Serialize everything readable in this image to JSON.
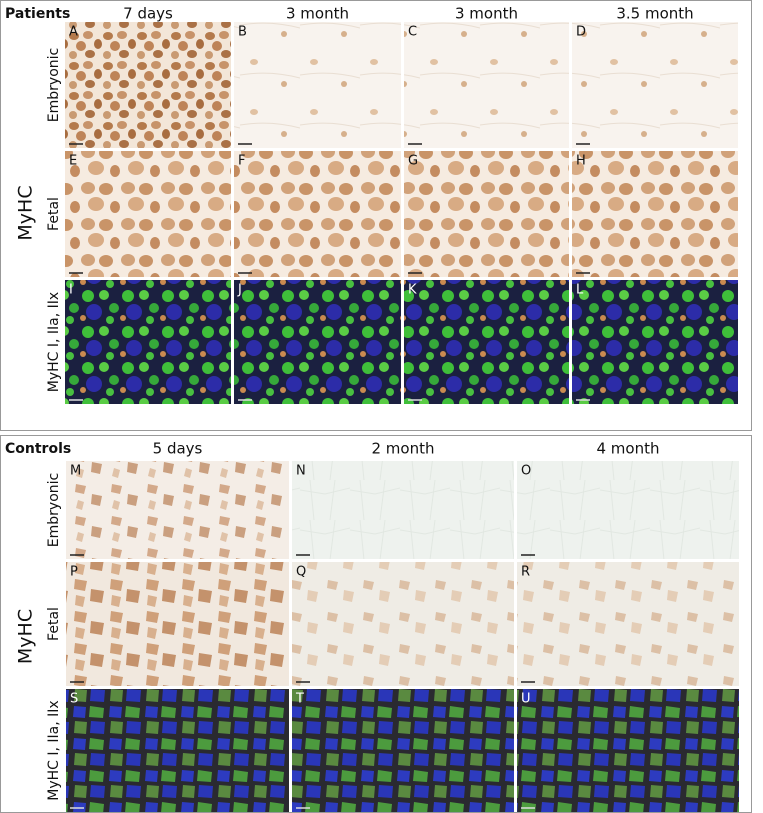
{
  "sections": [
    {
      "title": "Patients",
      "axis_label": "MyHC",
      "columns": [
        "7 days",
        "3 month",
        "3 month",
        "3.5 month"
      ],
      "rows": [
        "Embryonic",
        "Fetal",
        "MyHC I, IIa, IIx"
      ],
      "panels": [
        [
          "A",
          "B",
          "C",
          "D"
        ],
        [
          "E",
          "F",
          "G",
          "H"
        ],
        [
          "I",
          "J",
          "K",
          "L"
        ]
      ]
    },
    {
      "title": "Controls",
      "axis_label": "MyHC",
      "columns": [
        "5 days",
        "2 month",
        "4 month"
      ],
      "rows": [
        "Embryonic",
        "Fetal",
        "MyHC I, IIa, IIx"
      ],
      "panels": [
        [
          "M",
          "N",
          "O"
        ],
        [
          "P",
          "Q",
          "R"
        ],
        [
          "S",
          "T",
          "U"
        ]
      ]
    }
  ]
}
